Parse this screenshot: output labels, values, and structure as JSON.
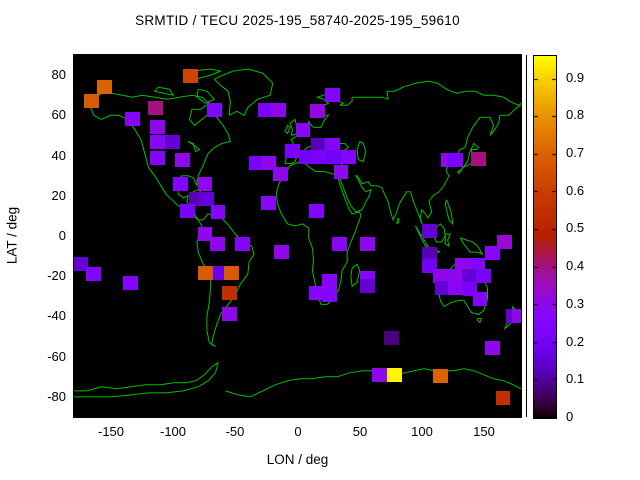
{
  "title": "SRMTID / TECU 2025-195_58740-2025-195_59610",
  "axes": {
    "x": {
      "label": "LON / deg",
      "min": -180,
      "max": 180,
      "ticks": [
        -150,
        -100,
        -50,
        0,
        50,
        100,
        150
      ]
    },
    "y": {
      "label": "LAT / deg",
      "min": -90,
      "max": 90,
      "ticks": [
        80,
        60,
        40,
        20,
        0,
        -20,
        -40,
        -60,
        -80
      ]
    }
  },
  "colorbar": {
    "min": 0,
    "max": 0.96,
    "ticks": [
      "0",
      "0.1",
      "0.2",
      "0.3",
      "0.4",
      "0.5",
      "0.6",
      "0.7",
      "0.8",
      "0.9"
    ],
    "palette": "gnuplot pm3d rgbformulae 7,5,15 (black-violet-red-orange-yellow)"
  },
  "colors": {
    "background": "#ffffff",
    "map_background": "#000000",
    "coastline": "#00be00",
    "text": "#000000",
    "value_low": "#000000",
    "value_violet": "#7d2df0",
    "value_orange": "#dc6400",
    "value_high": "#f5f500"
  },
  "chart_data": {
    "type": "heatmap",
    "title": "SRMTID / TECU 2025-195_58740-2025-195_59610",
    "xlabel": "LON / deg",
    "ylabel": "LAT / deg",
    "xlim": [
      -180,
      180
    ],
    "ylim": [
      -90,
      90
    ],
    "value_range": [
      0,
      0.96
    ],
    "cell_size_deg": {
      "lon": 12,
      "lat": 7
    },
    "units": "TECU",
    "points": [
      {
        "lon": -155.5,
        "lat": 74,
        "v": 0.7
      },
      {
        "lon": -166,
        "lat": 67,
        "v": 0.68
      },
      {
        "lon": -86,
        "lat": 79.5,
        "v": 0.62
      },
      {
        "lon": -114.5,
        "lat": 63.5,
        "v": 0.4
      },
      {
        "lon": -67,
        "lat": 62.5,
        "v": 0.25
      },
      {
        "lon": -133,
        "lat": 58,
        "v": 0.27
      },
      {
        "lon": -113,
        "lat": 54,
        "v": 0.3
      },
      {
        "lon": -113,
        "lat": 46.5,
        "v": 0.28
      },
      {
        "lon": -100.5,
        "lat": 46.5,
        "v": 0.15
      },
      {
        "lon": -113,
        "lat": 39,
        "v": 0.25
      },
      {
        "lon": -92.5,
        "lat": 38,
        "v": 0.3
      },
      {
        "lon": -94,
        "lat": 26,
        "v": 0.25
      },
      {
        "lon": -74.5,
        "lat": 26,
        "v": 0.3
      },
      {
        "lon": -81.5,
        "lat": 18.5,
        "v": 0.12
      },
      {
        "lon": -73.5,
        "lat": 18.5,
        "v": 0.15
      },
      {
        "lon": -88.5,
        "lat": 12.5,
        "v": 0.22
      },
      {
        "lon": -64,
        "lat": 12,
        "v": 0.27
      },
      {
        "lon": -23.5,
        "lat": 16.5,
        "v": 0.28
      },
      {
        "lon": -74.5,
        "lat": 1,
        "v": 0.3
      },
      {
        "lon": -64.5,
        "lat": -4,
        "v": 0.3
      },
      {
        "lon": -44.5,
        "lat": -4,
        "v": 0.27
      },
      {
        "lon": -13,
        "lat": -8,
        "v": 0.3
      },
      {
        "lon": -74,
        "lat": -18.5,
        "v": 0.68
      },
      {
        "lon": -62,
        "lat": -18.5,
        "v": 0.17
      },
      {
        "lon": -53,
        "lat": -18.5,
        "v": 0.68
      },
      {
        "lon": -54.5,
        "lat": -28.5,
        "v": 0.55
      },
      {
        "lon": -54.5,
        "lat": -39,
        "v": 0.3
      },
      {
        "lon": -174.5,
        "lat": -14,
        "v": 0.15
      },
      {
        "lon": -164.5,
        "lat": -19,
        "v": 0.25
      },
      {
        "lon": -134.5,
        "lat": -23.5,
        "v": 0.25
      },
      {
        "lon": -25.5,
        "lat": 62.5,
        "v": 0.22
      },
      {
        "lon": -15.5,
        "lat": 62.5,
        "v": 0.3
      },
      {
        "lon": 28,
        "lat": 70,
        "v": 0.25
      },
      {
        "lon": 16,
        "lat": 62,
        "v": 0.32
      },
      {
        "lon": 4.5,
        "lat": 52.5,
        "v": 0.28
      },
      {
        "lon": 16.5,
        "lat": 45.5,
        "v": 0.12
      },
      {
        "lon": 28,
        "lat": 45.5,
        "v": 0.25
      },
      {
        "lon": -4,
        "lat": 42.5,
        "v": 0.22
      },
      {
        "lon": 7,
        "lat": 39.5,
        "v": 0.2
      },
      {
        "lon": 17.5,
        "lat": 39.5,
        "v": 0.22
      },
      {
        "lon": 29,
        "lat": 39.5,
        "v": 0.2
      },
      {
        "lon": 41,
        "lat": 39.5,
        "v": 0.25
      },
      {
        "lon": -33.5,
        "lat": 36.5,
        "v": 0.22
      },
      {
        "lon": -23.5,
        "lat": 36.5,
        "v": 0.3
      },
      {
        "lon": -14,
        "lat": 31,
        "v": 0.3
      },
      {
        "lon": 35,
        "lat": 32,
        "v": 0.3
      },
      {
        "lon": 15.5,
        "lat": 12.5,
        "v": 0.25
      },
      {
        "lon": 34,
        "lat": -4,
        "v": 0.28
      },
      {
        "lon": 56.5,
        "lat": -4,
        "v": 0.3
      },
      {
        "lon": 15.5,
        "lat": -28.5,
        "v": 0.27
      },
      {
        "lon": 26,
        "lat": -22.5,
        "v": 0.27
      },
      {
        "lon": 26,
        "lat": -29.5,
        "v": 0.25
      },
      {
        "lon": 56.5,
        "lat": -21,
        "v": 0.27
      },
      {
        "lon": 56.5,
        "lat": -25,
        "v": 0.15
      },
      {
        "lon": 121.5,
        "lat": 38,
        "v": 0.3
      },
      {
        "lon": 127.5,
        "lat": 38,
        "v": 0.22
      },
      {
        "lon": 146,
        "lat": 38.5,
        "v": 0.4
      },
      {
        "lon": 106,
        "lat": 2.5,
        "v": 0.15
      },
      {
        "lon": 106,
        "lat": -9,
        "v": 0.12
      },
      {
        "lon": 106.5,
        "lat": -15,
        "v": 0.2
      },
      {
        "lon": 166.5,
        "lat": -3,
        "v": 0.33
      },
      {
        "lon": 157,
        "lat": -8.5,
        "v": 0.28
      },
      {
        "lon": 145,
        "lat": -14.5,
        "v": 0.25
      },
      {
        "lon": 133,
        "lat": -14.5,
        "v": 0.3
      },
      {
        "lon": 115,
        "lat": -20,
        "v": 0.3
      },
      {
        "lon": 126.5,
        "lat": -20,
        "v": 0.3
      },
      {
        "lon": 138.5,
        "lat": -20,
        "v": 0.15
      },
      {
        "lon": 149.5,
        "lat": -20,
        "v": 0.22
      },
      {
        "lon": 117,
        "lat": -26,
        "v": 0.15
      },
      {
        "lon": 127,
        "lat": -26,
        "v": 0.28
      },
      {
        "lon": 139,
        "lat": -26.5,
        "v": 0.22
      },
      {
        "lon": 147,
        "lat": -31.5,
        "v": 0.25
      },
      {
        "lon": 174,
        "lat": -40,
        "v": 0.15
      },
      {
        "lon": 179,
        "lat": -40,
        "v": 0.3
      },
      {
        "lon": 75.5,
        "lat": -50.5,
        "v": 0.08
      },
      {
        "lon": 157,
        "lat": -55.5,
        "v": 0.3
      },
      {
        "lon": 66,
        "lat": -69,
        "v": 0.3
      },
      {
        "lon": 78,
        "lat": -69,
        "v": 0.95
      },
      {
        "lon": 115,
        "lat": -69.5,
        "v": 0.7
      },
      {
        "lon": 165.5,
        "lat": -80.5,
        "v": 0.55
      }
    ]
  }
}
